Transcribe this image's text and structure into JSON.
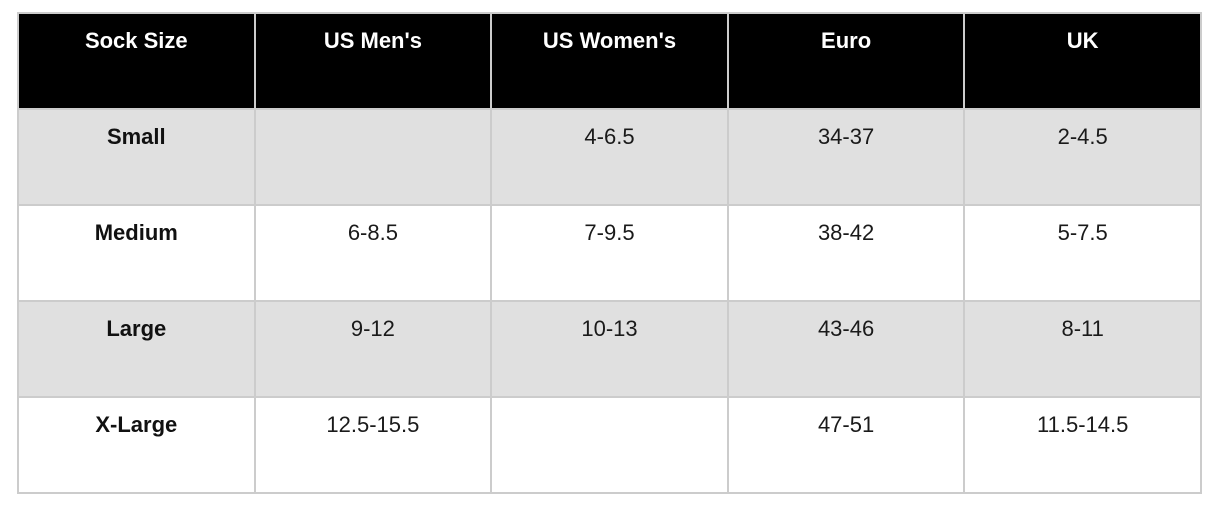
{
  "chart_data": {
    "type": "table",
    "columns": [
      "Sock Size",
      "US Men's",
      "US Women's",
      "Euro",
      "UK"
    ],
    "rows": [
      [
        "Small",
        "",
        "4-6.5",
        "34-37",
        "2-4.5"
      ],
      [
        "Medium",
        "6-8.5",
        "7-9.5",
        "38-42",
        "5-7.5"
      ],
      [
        "Large",
        "9-12",
        "10-13",
        "43-46",
        "8-11"
      ],
      [
        "X-Large",
        "12.5-15.5",
        "",
        "47-51",
        "11.5-14.5"
      ]
    ],
    "layout": {
      "header_style": "black-background-white-bold-text",
      "row_striping": "odd-rows-gray",
      "grid": "on"
    }
  },
  "colors": {
    "header_bg": "#000000",
    "header_text": "#ffffff",
    "alt_row_bg": "#e0e0e0",
    "row_bg": "#ffffff",
    "border": "#cccccc",
    "text": "#1a1a1a"
  }
}
